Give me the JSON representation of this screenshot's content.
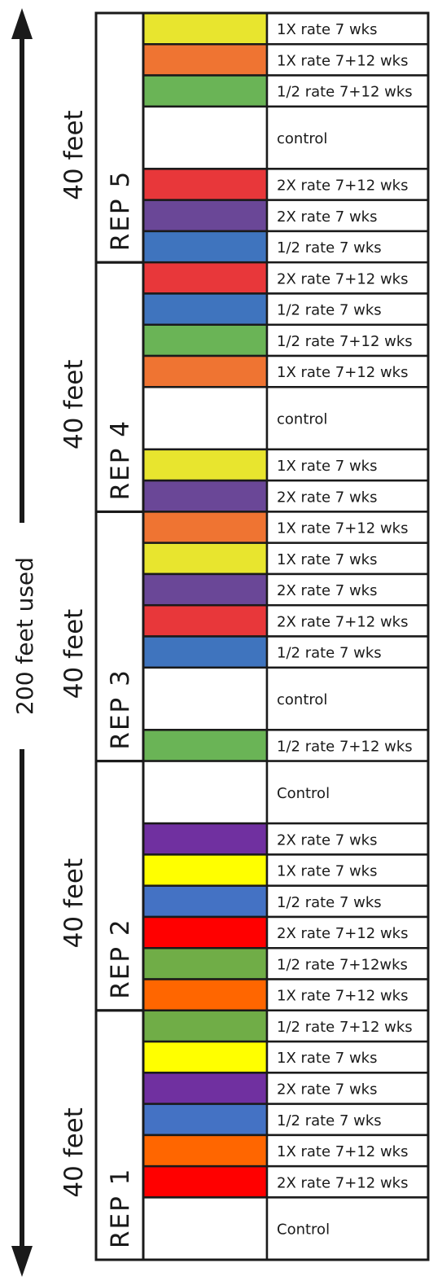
{
  "total_label": "200 feet used",
  "reps": [
    {
      "label": "REP 5",
      "feet": "40 feet",
      "rows": [
        {
          "color": "#E8E52E",
          "text": "1X rate 7 wks"
        },
        {
          "color": "#EF7432",
          "text": "1X rate 7+12 wks"
        },
        {
          "color": "#6AB456",
          "text": "1/2 rate 7+12 wks"
        },
        {
          "color": "#FFFFFF",
          "text": "control",
          "tall": true
        },
        {
          "color": "#E8373A",
          "text": "2X rate 7+12 wks"
        },
        {
          "color": "#6A4797",
          "text": "2X rate 7 wks"
        },
        {
          "color": "#3F74BE",
          "text": "1/2 rate 7 wks"
        }
      ]
    },
    {
      "label": "REP 4",
      "feet": "40 feet",
      "rows": [
        {
          "color": "#E8373A",
          "text": "2X rate 7+12 wks"
        },
        {
          "color": "#3F74BE",
          "text": "1/2 rate 7 wks"
        },
        {
          "color": "#6AB456",
          "text": "1/2 rate 7+12 wks"
        },
        {
          "color": "#EF7432",
          "text": "1X rate 7+12 wks"
        },
        {
          "color": "#FFFFFF",
          "text": "control",
          "tall": true
        },
        {
          "color": "#E8E52E",
          "text": "1X rate 7 wks"
        },
        {
          "color": "#6A4797",
          "text": "2X rate 7 wks"
        }
      ]
    },
    {
      "label": "REP 3",
      "feet": "40 feet",
      "rows": [
        {
          "color": "#EF7432",
          "text": "1X rate 7+12 wks"
        },
        {
          "color": "#E8E52E",
          "text": "1X rate 7 wks"
        },
        {
          "color": "#6A4797",
          "text": "2X rate 7 wks"
        },
        {
          "color": "#E8373A",
          "text": "2X rate 7+12 wks"
        },
        {
          "color": "#3F74BE",
          "text": "1/2 rate 7 wks"
        },
        {
          "color": "#FFFFFF",
          "text": "control",
          "tall": true
        },
        {
          "color": "#6AB456",
          "text": "1/2 rate 7+12 wks"
        }
      ]
    },
    {
      "label": "REP 2",
      "feet": "40 feet",
      "rows": [
        {
          "color": "#FFFFFF",
          "text": "Control",
          "tall": true
        },
        {
          "color": "#7030A0",
          "text": "2X rate 7 wks"
        },
        {
          "color": "#FFFF00",
          "text": "1X rate 7 wks"
        },
        {
          "color": "#4472C4",
          "text": "1/2 rate 7 wks"
        },
        {
          "color": "#FF0000",
          "text": "2X rate 7+12 wks"
        },
        {
          "color": "#70AD47",
          "text": "1/2 rate 7+12wks"
        },
        {
          "color": "#FF6600",
          "text": "1X rate 7+12 wks"
        }
      ]
    },
    {
      "label": "REP 1",
      "feet": "40 feet",
      "rows": [
        {
          "color": "#70AD47",
          "text": "1/2 rate 7+12 wks"
        },
        {
          "color": "#FFFF00",
          "text": "1X rate 7 wks"
        },
        {
          "color": "#7030A0",
          "text": "2X rate 7 wks"
        },
        {
          "color": "#4472C4",
          "text": "1/2 rate 7 wks"
        },
        {
          "color": "#FF6600",
          "text": "1X rate 7+12 wks"
        },
        {
          "color": "#FF0000",
          "text": "2X rate 7+12 wks"
        },
        {
          "color": "#FFFFFF",
          "text": "Control",
          "tall": true
        }
      ]
    }
  ]
}
